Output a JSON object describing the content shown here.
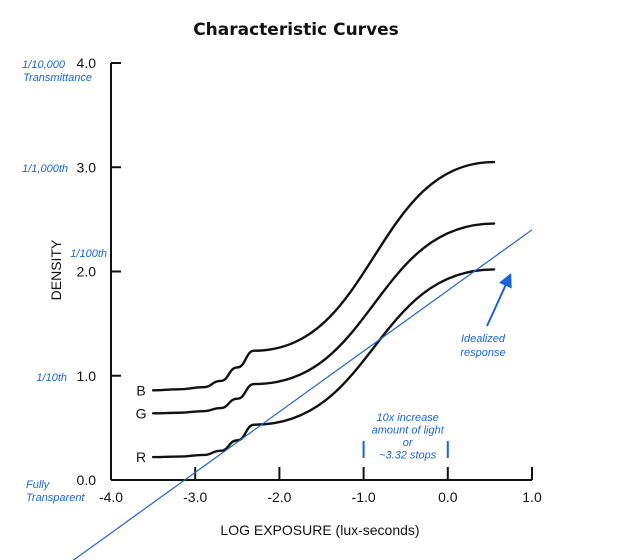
{
  "chart_data": {
    "type": "line",
    "title": "Characteristic Curves",
    "xlabel": "LOG EXPOSURE (lux-seconds)",
    "ylabel": "DENSITY",
    "xlim": [
      -4.0,
      1.0
    ],
    "ylim": [
      0.0,
      4.0
    ],
    "x_ticks": [
      -4.0,
      -3.0,
      -2.0,
      -1.0,
      0.0,
      1.0
    ],
    "x_tick_labels": [
      "-4.0",
      "-3.0",
      "-2.0",
      "-1.0",
      "0.0",
      "1.0"
    ],
    "y_ticks": [
      0.0,
      1.0,
      2.0,
      3.0,
      4.0
    ],
    "y_tick_labels": [
      "0.0",
      "1.0",
      "2.0",
      "3.0",
      "4.0"
    ],
    "y_notes": [
      {
        "y": 4.0,
        "lines": [
          "1/10,000",
          "Transmittance"
        ]
      },
      {
        "y": 3.0,
        "lines": [
          "1/1,000th"
        ]
      },
      {
        "y": 2.0,
        "lines": [
          "1/100th"
        ]
      },
      {
        "y": 1.0,
        "lines": [
          "1/10th"
        ]
      },
      {
        "y": 0.0,
        "lines": [
          "Fully",
          "Transparent"
        ]
      }
    ],
    "series": [
      {
        "name": "B",
        "color": "#111111",
        "x": [
          -3.5,
          -3.2,
          -2.9,
          -2.7,
          -2.5,
          -2.3,
          0.55
        ],
        "y": [
          0.86,
          0.87,
          0.89,
          0.95,
          1.08,
          1.24,
          3.05
        ]
      },
      {
        "name": "G",
        "color": "#111111",
        "x": [
          -3.5,
          -3.2,
          -2.9,
          -2.7,
          -2.5,
          -2.3,
          0.55
        ],
        "y": [
          0.64,
          0.645,
          0.66,
          0.69,
          0.78,
          0.92,
          2.46
        ]
      },
      {
        "name": "R",
        "color": "#111111",
        "x": [
          -3.5,
          -3.2,
          -2.9,
          -2.7,
          -2.5,
          -2.3,
          0.55
        ],
        "y": [
          0.22,
          0.225,
          0.24,
          0.28,
          0.38,
          0.53,
          2.02
        ]
      }
    ],
    "idealized": {
      "color": "#1a64d6",
      "x": [
        -4.5,
        1.0
      ],
      "y": [
        -0.8,
        2.4
      ]
    },
    "annotations": {
      "idealized_lines": [
        "Idealized",
        "response"
      ],
      "stops_lines": [
        "10x increase",
        "amount of light",
        "or",
        "~3.32 stops"
      ],
      "stops_range": [
        -1.0,
        0.0
      ]
    }
  }
}
